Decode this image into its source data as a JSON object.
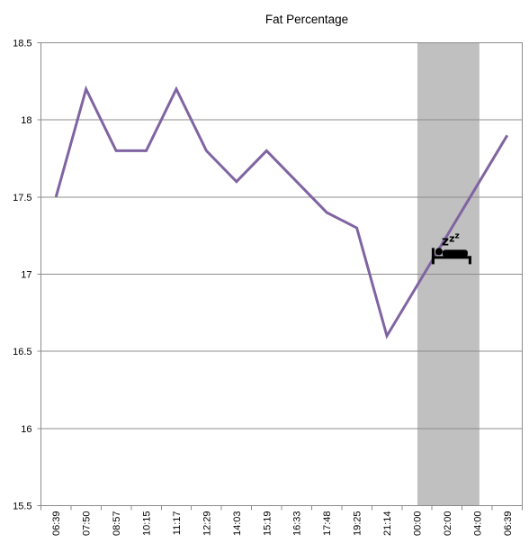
{
  "chart_data": {
    "type": "line",
    "title": "Fat Percentage",
    "xlabel": "",
    "ylabel": "",
    "ylim": [
      15.5,
      18.5
    ],
    "yticks": [
      15.5,
      16,
      16.5,
      17,
      17.5,
      18,
      18.5
    ],
    "ytick_labels": [
      "15.5",
      "16",
      "16.5",
      "17",
      "17.5",
      "18",
      "18.5"
    ],
    "categories": [
      "06:39",
      "07:50",
      "08:57",
      "10:15",
      "11:17",
      "12:29",
      "14:03",
      "15:19",
      "16:33",
      "17:48",
      "19:25",
      "21:14",
      "00:00",
      "02:00",
      "04:00",
      "06:39"
    ],
    "series": [
      {
        "values": [
          17.5,
          18.2,
          17.8,
          17.8,
          18.2,
          17.8,
          17.6,
          17.8,
          17.6,
          17.4,
          17.3,
          16.6,
          null,
          null,
          null,
          17.9
        ],
        "color": "#8064a2"
      }
    ],
    "connect_gaps": true,
    "grid": true,
    "legend": "none",
    "shaded_band": {
      "from_category": "00:00",
      "to_category": "04:00",
      "color": "#c0c0c0",
      "meaning": "sleep"
    },
    "icon": {
      "name": "sleep-bed-icon",
      "glyph": "zzz"
    }
  }
}
